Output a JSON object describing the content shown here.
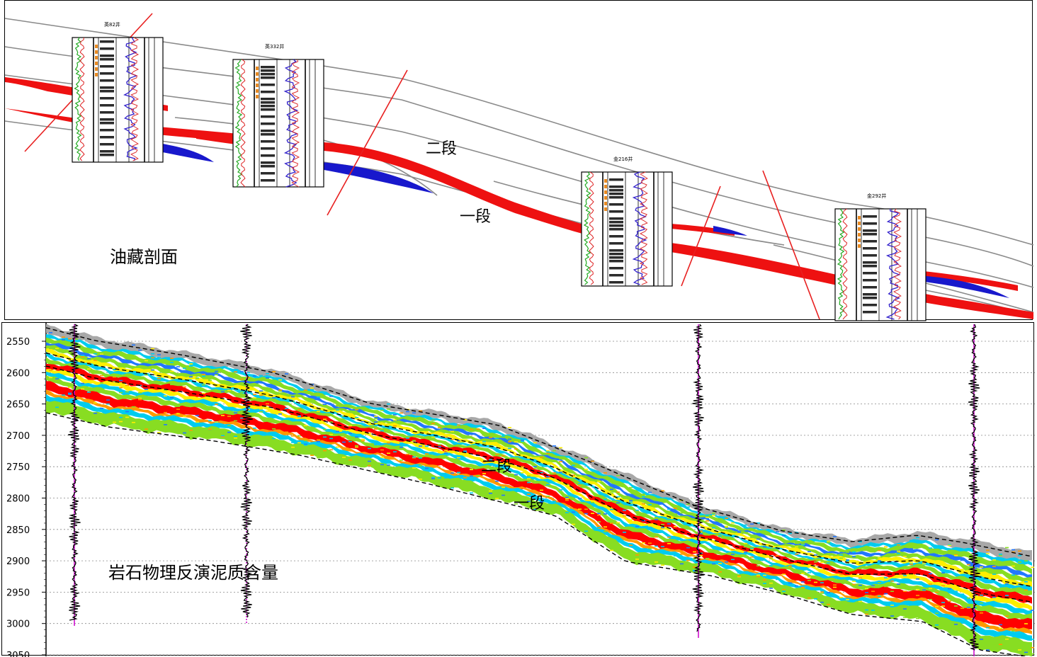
{
  "reservoir_section": {
    "title": "油藏剖面",
    "segment_upper": "二段",
    "segment_lower": "一段",
    "colors": {
      "sand": "#ee1111",
      "blue_wedge": "#1818cc",
      "fault": "#e82020",
      "horizon": "#8a8a8a"
    },
    "wells": [
      {
        "name": "英82井"
      },
      {
        "name": "英332井"
      },
      {
        "name": "金216井"
      },
      {
        "name": "金292井"
      }
    ]
  },
  "inversion_section": {
    "title": "岩石物理反演泥质含量",
    "segment_upper": "二段",
    "segment_lower": "一段",
    "depth_ticks": [
      "2550",
      "2600",
      "2650",
      "2700",
      "2750",
      "2800",
      "2850",
      "2900",
      "2950",
      "3000",
      "3050"
    ],
    "colors": {
      "red": "#ff0000",
      "orange": "#ff9900",
      "yellow": "#ffee00",
      "green": "#88dd22",
      "cyan": "#00ccee",
      "blue": "#2277ff",
      "gray": "#a8a8a8",
      "well": "#cc00cc"
    }
  }
}
